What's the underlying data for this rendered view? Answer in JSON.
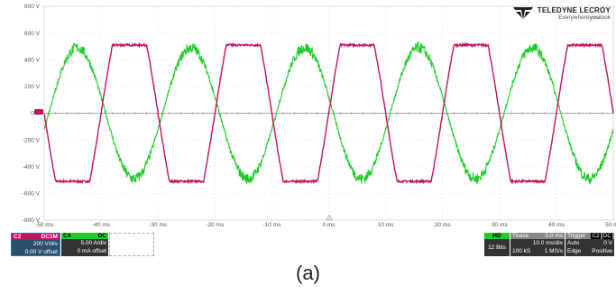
{
  "chart_data": {
    "type": "line",
    "xlim": [
      -50,
      50
    ],
    "ylim": [
      -800,
      800
    ],
    "x_ticks": [
      -50,
      -40,
      -30,
      -20,
      -10,
      0,
      10,
      20,
      30,
      40,
      50
    ],
    "x_tick_labels": [
      "-50 ms",
      "-40 ms",
      "-30 ms",
      "-20 ms",
      "-10 ms",
      "0 ms",
      "10 ms",
      "20 ms",
      "30 ms",
      "40 ms",
      "50 ms"
    ],
    "y_ticks": [
      800,
      600,
      400,
      200,
      0,
      -200,
      -400,
      -600,
      -800
    ],
    "y_tick_labels": [
      "800 V",
      "600 V",
      "400 V",
      "200 V",
      "0 V",
      "-200 V",
      "-400 V",
      "-600 V",
      "-800 V"
    ],
    "grid": true,
    "period_ms": 20,
    "series": [
      {
        "channel": "C2",
        "color": "#c2125e",
        "shape": "trapezoid",
        "amplitude": 510,
        "phase_ms": 0,
        "noise": 8
      },
      {
        "channel": "C4",
        "color": "#1fcc2a",
        "shape": "sine",
        "amplitude": 490,
        "phase_ms": -9.2,
        "noise": 30
      }
    ]
  },
  "brand": {
    "name": "TELEDYNE LECROY",
    "tag_plain": "Everywhere",
    "tag_bold": "you",
    "tag_end": "look"
  },
  "ch2": {
    "label": "C2",
    "mode": "DC1M",
    "scale": "200 V/div",
    "offset": "0.00 V offset"
  },
  "ch4": {
    "label": "C4",
    "mode": "DC",
    "scale": "5.00 A/div",
    "offset": "0 mA offset"
  },
  "hd": {
    "label": "HD",
    "bits": "12 Bits"
  },
  "timebase": {
    "label": "Tbase",
    "delay": "0.0 ms",
    "scale": "10.0 ms/div",
    "samples": "100 kS",
    "rate": "1 MS/s"
  },
  "trigger": {
    "label": "Trigger",
    "source": "C2",
    "mode_badge": "DC",
    "mode": "Auto",
    "level": "0 V",
    "type": "Edge",
    "slope": "Positive"
  },
  "caption": "(a)"
}
